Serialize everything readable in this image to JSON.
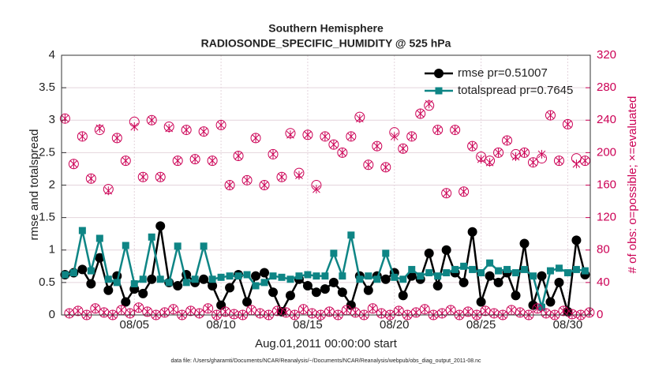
{
  "chart_data": {
    "type": "line",
    "title": "Southern Hemisphere",
    "subtitle": "RADIOSONDE_SPECIFIC_HUMIDITY @ 525 hPa",
    "xlabel": "Aug.01,2011 00:00:00 start",
    "ylabel": "rmse and totalspread",
    "y2label": "# of obs: o=possible; ×=evaluated",
    "footnote": "data file: /Users/gharamti/Documents/NCAR/Reanalysis/~/Documents/NCAR/Reanalysis/webpub/obs_diag_output_2011-08.nc",
    "grid": true,
    "legend": "upper right",
    "xlim": [
      0.8,
      31.3
    ],
    "xticks": [
      {
        "value": 5,
        "label": "08/05"
      },
      {
        "value": 10,
        "label": "08/10"
      },
      {
        "value": 15,
        "label": "08/15"
      },
      {
        "value": 20,
        "label": "08/20"
      },
      {
        "value": 25,
        "label": "08/25"
      },
      {
        "value": 30,
        "label": "08/30"
      }
    ],
    "ylim": [
      0,
      4
    ],
    "yticks": [
      0,
      0.5,
      1,
      1.5,
      2,
      2.5,
      3,
      3.5,
      4
    ],
    "y2lim": [
      0,
      320
    ],
    "y2ticks": [
      0,
      40,
      80,
      120,
      160,
      200,
      240,
      280,
      320
    ],
    "x": [
      1,
      1.5,
      2,
      2.5,
      3,
      3.5,
      4,
      4.5,
      5,
      5.5,
      6,
      6.5,
      7,
      7.5,
      8,
      8.5,
      9,
      9.5,
      10,
      10.5,
      11,
      11.5,
      12,
      12.5,
      13,
      13.5,
      14,
      14.5,
      15,
      15.5,
      16,
      16.5,
      17,
      17.5,
      18,
      18.5,
      19,
      19.5,
      20,
      20.5,
      21,
      21.5,
      22,
      22.5,
      23,
      23.5,
      24,
      24.5,
      25,
      25.5,
      26,
      26.5,
      27,
      27.5,
      28,
      28.5,
      29,
      29.5,
      30,
      30.5,
      31
    ],
    "series": [
      {
        "name": "rmse pr=0.51007",
        "color": "#000000",
        "marker": "circle",
        "line": true,
        "values": [
          0.62,
          0.65,
          0.7,
          0.48,
          0.88,
          0.38,
          0.6,
          0.2,
          0.4,
          0.33,
          0.55,
          1.37,
          0.5,
          0.45,
          0.62,
          0.5,
          0.55,
          0.45,
          0.15,
          0.42,
          0.62,
          0.2,
          0.6,
          0.65,
          0.35,
          0.05,
          0.3,
          0.55,
          0.45,
          0.35,
          0.4,
          0.5,
          0.35,
          0.15,
          0.6,
          0.38,
          0.6,
          0.55,
          0.65,
          0.3,
          0.6,
          0.55,
          0.95,
          0.45,
          1.0,
          0.65,
          0.5,
          1.28,
          0.2,
          0.6,
          0.5,
          0.65,
          0.3,
          1.1,
          0.15,
          0.6,
          0.2,
          0.5,
          0.05,
          1.15,
          0.62
        ]
      },
      {
        "name": "totalspread pr=0.7645",
        "color": "#0e8585",
        "marker": "square",
        "line": true,
        "values": [
          0.62,
          0.65,
          1.3,
          0.68,
          1.18,
          0.55,
          0.5,
          1.07,
          0.48,
          0.55,
          1.2,
          0.55,
          0.5,
          1.06,
          0.5,
          0.55,
          1.06,
          0.55,
          0.58,
          0.6,
          0.6,
          0.62,
          0.45,
          0.5,
          0.6,
          0.58,
          0.55,
          0.6,
          0.62,
          0.6,
          0.6,
          0.95,
          0.6,
          1.23,
          0.55,
          0.6,
          0.55,
          0.95,
          0.58,
          0.55,
          0.7,
          0.6,
          0.65,
          0.6,
          0.65,
          0.7,
          0.75,
          0.7,
          0.65,
          0.8,
          0.68,
          0.7,
          0.65,
          0.7,
          0.6,
          0.12,
          0.68,
          0.72,
          0.65,
          0.7,
          0.68
        ]
      },
      {
        "color": "#cc0055",
        "marker": "ring",
        "axis": "y2",
        "values": [
          242,
          186,
          220,
          168,
          228,
          155,
          218,
          190,
          238,
          170,
          240,
          170,
          232,
          190,
          228,
          192,
          226,
          190,
          234,
          160,
          196,
          166,
          218,
          160,
          198,
          170,
          224,
          175,
          222,
          160,
          220,
          210,
          200,
          220,
          244,
          185,
          208,
          182,
          225,
          205,
          220,
          248,
          258,
          228,
          150,
          228,
          152,
          208,
          195,
          190,
          200,
          215,
          198,
          200,
          188,
          193,
          246,
          190,
          235,
          193,
          190
        ]
      },
      {
        "color": "#cc0055",
        "marker": "cross",
        "axis": "y2",
        "values": [
          242,
          186,
          220,
          168,
          230,
          153,
          218,
          190,
          232,
          170,
          240,
          170,
          230,
          190,
          228,
          192,
          226,
          190,
          234,
          160,
          196,
          166,
          218,
          160,
          198,
          170,
          222,
          172,
          222,
          155,
          220,
          210,
          200,
          220,
          242,
          185,
          208,
          182,
          220,
          205,
          220,
          248,
          260,
          228,
          150,
          228,
          152,
          208,
          192,
          188,
          200,
          215,
          195,
          200,
          188,
          198,
          246,
          190,
          235,
          186,
          190
        ]
      },
      {
        "color": "#cc0055",
        "marker": "ring",
        "axis": "y2",
        "x": [
          1.25,
          1.75,
          2.25,
          2.75,
          3.25,
          3.75,
          4.25,
          4.75,
          5.25,
          5.75,
          6.25,
          6.75,
          7.25,
          7.75,
          8.25,
          8.75,
          9.25,
          9.75,
          10.25,
          10.75,
          11.25,
          11.75,
          12.25,
          12.75,
          13.25,
          13.75,
          14.25,
          14.75,
          15.25,
          15.75,
          16.25,
          16.75,
          17.25,
          17.75,
          18.25,
          18.75,
          19.25,
          19.75,
          20.25,
          20.75,
          21.25,
          21.75,
          22.25,
          22.75,
          23.25,
          23.75,
          24.25,
          24.75,
          25.25,
          25.75,
          26.25,
          26.75,
          27.25,
          27.75,
          28.25,
          28.75,
          29.25,
          29.75,
          30.25,
          30.75,
          31.25
        ],
        "values": [
          2,
          5,
          0,
          8,
          3,
          0,
          6,
          2,
          9,
          4,
          0,
          3,
          7,
          0,
          5,
          2,
          8,
          0,
          4,
          1,
          0,
          6,
          2,
          0,
          5,
          3,
          0,
          7,
          2,
          0,
          4,
          0,
          6,
          3,
          0,
          8,
          2,
          0,
          5,
          0,
          3,
          7,
          0,
          2,
          6,
          0,
          4,
          0,
          5,
          2,
          0,
          6,
          3,
          0,
          8,
          2,
          0,
          5,
          1,
          0,
          3
        ]
      },
      {
        "color": "#cc0055",
        "marker": "cross",
        "axis": "y2",
        "x": [
          1.25,
          1.75,
          2.25,
          2.75,
          3.25,
          3.75,
          4.25,
          4.75,
          5.25,
          5.75,
          6.25,
          6.75,
          7.25,
          7.75,
          8.25,
          8.75,
          9.25,
          9.75,
          10.25,
          10.75,
          11.25,
          11.75,
          12.25,
          12.75,
          13.25,
          13.75,
          14.25,
          14.75,
          15.25,
          15.75,
          16.25,
          16.75,
          17.25,
          17.75,
          18.25,
          18.75,
          19.25,
          19.75,
          20.25,
          20.75,
          21.25,
          21.75,
          22.25,
          22.75,
          23.25,
          23.75,
          24.25,
          24.75,
          25.25,
          25.75,
          26.25,
          26.75,
          27.25,
          27.75,
          28.25,
          28.75,
          29.25,
          29.75,
          30.25,
          30.75,
          31.25
        ],
        "values": [
          2,
          5,
          0,
          8,
          3,
          0,
          6,
          2,
          9,
          4,
          0,
          3,
          7,
          0,
          5,
          2,
          8,
          0,
          4,
          1,
          0,
          6,
          2,
          0,
          5,
          3,
          0,
          7,
          2,
          0,
          4,
          0,
          6,
          3,
          0,
          8,
          2,
          0,
          5,
          0,
          3,
          7,
          0,
          2,
          6,
          0,
          4,
          0,
          5,
          2,
          0,
          6,
          3,
          0,
          8,
          2,
          0,
          5,
          1,
          0,
          3
        ]
      }
    ]
  }
}
